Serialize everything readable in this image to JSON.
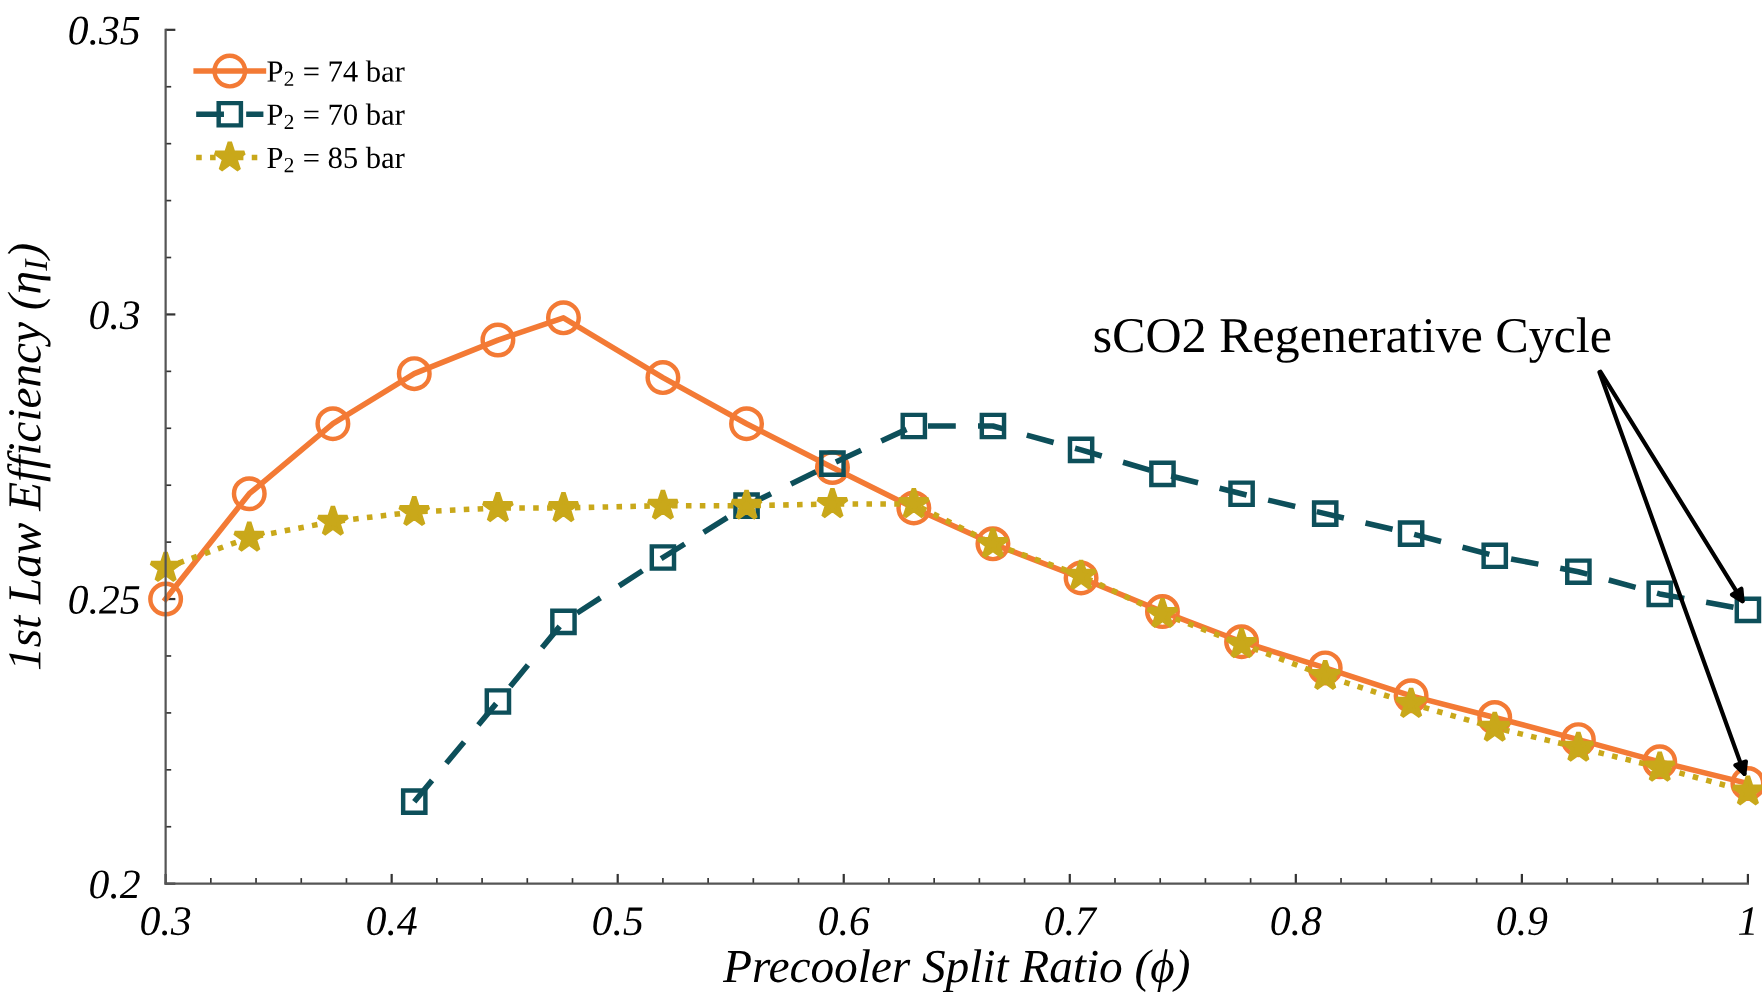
{
  "chart_data": {
    "type": "line",
    "xlabel": "Precooler Split Ratio (ϕ)",
    "ylabel": "1st Law Efficiency (η$_{I}$)",
    "x": [
      0.3,
      0.337,
      0.374,
      0.41,
      0.447,
      0.476,
      0.52,
      0.557,
      0.595,
      0.631,
      0.666,
      0.705,
      0.741,
      0.776,
      0.813,
      0.851,
      0.888,
      0.925,
      0.961,
      1.0
    ],
    "series": [
      {
        "name": "P$_{2}$ = 74 bar",
        "color": "#f37a35",
        "marker": "circle",
        "line_style": "solid",
        "values": [
          0.25,
          0.2685,
          0.2808,
          0.2896,
          0.2955,
          0.2994,
          0.2889,
          0.2808,
          0.2731,
          0.266,
          0.2597,
          0.2537,
          0.2478,
          0.2425,
          0.2379,
          0.233,
          0.2292,
          0.2253,
          0.2214,
          0.2176
        ]
      },
      {
        "name": "P$_{2}$ = 70 bar",
        "color": "#0d4f5a",
        "marker": "square",
        "line_style": "dashed",
        "values": [
          null,
          null,
          null,
          0.2144,
          0.232,
          0.246,
          0.2573,
          0.2664,
          0.2738,
          0.2804,
          0.2804,
          0.2762,
          0.272,
          0.2685,
          0.265,
          0.2615,
          0.2576,
          0.2548,
          0.2509,
          0.2481
        ]
      },
      {
        "name": "P$_{2}$ = 85 bar",
        "color": "#c9a81a",
        "marker": "star",
        "line_style": "dotted",
        "values": [
          0.2555,
          0.2608,
          0.2636,
          0.2653,
          0.266,
          0.266,
          0.2664,
          0.2664,
          0.2667,
          0.2667,
          0.2597,
          0.2541,
          0.2474,
          0.2421,
          0.2365,
          0.2316,
          0.2274,
          0.2239,
          0.2204,
          0.2162
        ]
      }
    ],
    "xlim": [
      0.3,
      1
    ],
    "ylim": [
      0.2,
      0.35
    ],
    "xticks": [
      0.3,
      0.4,
      0.5,
      0.6,
      0.7,
      0.8,
      0.9,
      1
    ],
    "yticks": [
      0.2,
      0.25,
      0.3,
      0.35
    ],
    "grid": false,
    "legend": "top left",
    "annotations": [
      {
        "text": "sCO2 Regenerative Cycle",
        "x": 1.0,
        "y": 0.2481
      }
    ]
  }
}
